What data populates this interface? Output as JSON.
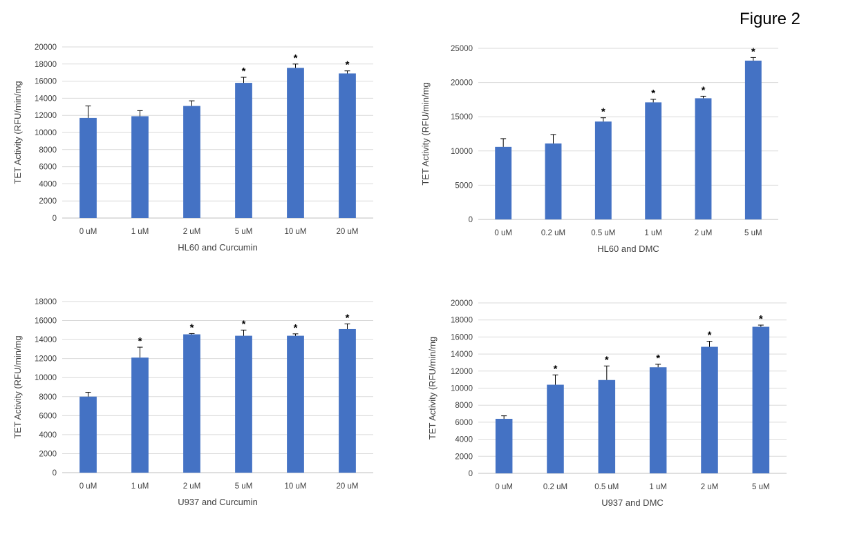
{
  "figure_label": "Figure 2",
  "colors": {
    "bar": "#4472C4",
    "grid": "#d9d9d9",
    "error": "#000000"
  },
  "chart_data": [
    {
      "type": "bar",
      "categories": [
        "0 uM",
        "1 uM",
        "2 uM",
        "5 uM",
        "10 uM",
        "20 uM"
      ],
      "values": [
        11700,
        11900,
        13100,
        15800,
        17550,
        16900
      ],
      "errors": [
        1400,
        650,
        600,
        650,
        450,
        300
      ],
      "significant": [
        false,
        false,
        false,
        true,
        true,
        true
      ],
      "annotation": "*",
      "title": "",
      "xlabel": "HL60 and Curcumin",
      "ylabel": "TET Activity (RFU/min/mg",
      "ylim": [
        0,
        20000
      ],
      "yticks": [
        0,
        2000,
        4000,
        6000,
        8000,
        10000,
        12000,
        14000,
        16000,
        18000,
        20000
      ],
      "grid": true
    },
    {
      "type": "bar",
      "categories": [
        "0 uM",
        "0.2 uM",
        "0.5 uM",
        "1 uM",
        "2 uM",
        "5 uM"
      ],
      "values": [
        10600,
        11100,
        14300,
        17100,
        17700,
        23200
      ],
      "errors": [
        1200,
        1300,
        550,
        450,
        300,
        450
      ],
      "significant": [
        false,
        false,
        true,
        true,
        true,
        true
      ],
      "annotation": "*",
      "title": "",
      "xlabel": "HL60 and DMC",
      "ylabel": "TET Activity (RFU/min/mg",
      "ylim": [
        0,
        25000
      ],
      "yticks": [
        0,
        5000,
        10000,
        15000,
        20000,
        25000
      ],
      "grid": true
    },
    {
      "type": "bar",
      "categories": [
        "0 uM",
        "1 uM",
        "2 uM",
        "5 uM",
        "10 uM",
        "20 uM"
      ],
      "values": [
        8000,
        12100,
        14550,
        14400,
        14400,
        15100
      ],
      "errors": [
        450,
        1100,
        80,
        600,
        200,
        550
      ],
      "significant": [
        false,
        true,
        true,
        true,
        true,
        true
      ],
      "annotation": "*",
      "title": "",
      "xlabel": "U937 and Curcumin",
      "ylabel": "TET Activity (RFU/min/mg",
      "ylim": [
        0,
        18000
      ],
      "yticks": [
        0,
        2000,
        4000,
        6000,
        8000,
        10000,
        12000,
        14000,
        16000,
        18000
      ],
      "grid": true
    },
    {
      "type": "bar",
      "categories": [
        "0 uM",
        "0.2 uM",
        "0.5 uM",
        "1 uM",
        "2 uM",
        "5 uM"
      ],
      "values": [
        6400,
        10400,
        10950,
        12450,
        14850,
        17200
      ],
      "errors": [
        350,
        1150,
        1650,
        350,
        650,
        200
      ],
      "significant": [
        false,
        true,
        true,
        true,
        true,
        true
      ],
      "annotation": "*",
      "title": "",
      "xlabel": "U937 and DMC",
      "ylabel": "TET Activity (RFU/min/mg",
      "ylim": [
        0,
        20000
      ],
      "yticks": [
        0,
        2000,
        4000,
        6000,
        8000,
        10000,
        12000,
        14000,
        16000,
        18000,
        20000
      ],
      "grid": true
    }
  ]
}
